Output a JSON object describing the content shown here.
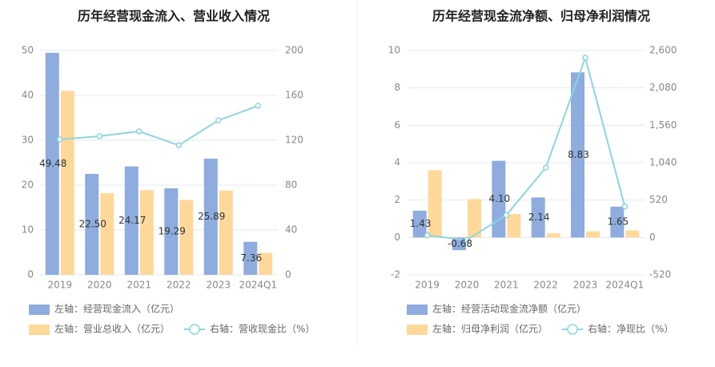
{
  "colors": {
    "bar1": "#8eacde",
    "bar2": "#ffd89a",
    "line": "#8dd5de",
    "grid": "#e3e8f2",
    "axis_text": "#888888",
    "label_text": "#333333",
    "title_text": "#222222"
  },
  "chart_data": [
    {
      "type": "bar",
      "title": "历年经营现金流入、营业收入情况",
      "categories": [
        "2019",
        "2020",
        "2021",
        "2022",
        "2023",
        "2024Q1"
      ],
      "left_axis": {
        "ticks": [
          "0",
          "10",
          "20",
          "30",
          "40",
          "50"
        ],
        "ylim": [
          0,
          50
        ]
      },
      "right_axis": {
        "ticks": [
          "0",
          "40",
          "80",
          "120",
          "160",
          "200"
        ],
        "ylim": [
          0,
          200
        ]
      },
      "series": [
        {
          "name": "左轴：经营现金流入（亿元）",
          "type": "bar",
          "axis": "left",
          "values": [
            49.48,
            22.5,
            24.17,
            19.29,
            25.89,
            7.36
          ],
          "labels": [
            "49.48",
            "22.50",
            "24.17",
            "19.29",
            "25.89",
            "7.36"
          ]
        },
        {
          "name": "左轴：营业总收入（亿元）",
          "type": "bar",
          "axis": "left",
          "values": [
            41.0,
            18.2,
            18.9,
            16.7,
            18.8,
            4.9
          ]
        },
        {
          "name": "右轴：营收现金比（%）",
          "type": "line",
          "axis": "right",
          "values": [
            120.7,
            123.6,
            127.9,
            115.5,
            137.7,
            150.7
          ]
        }
      ],
      "legend": "bottom-left",
      "grid": true
    },
    {
      "type": "bar",
      "title": "历年经营现金流净额、归母净利润情况",
      "categories": [
        "2019",
        "2020",
        "2021",
        "2022",
        "2023",
        "2024Q1"
      ],
      "left_axis": {
        "ticks": [
          "-2",
          "0",
          "2",
          "4",
          "6",
          "8",
          "10"
        ],
        "ylim": [
          -2,
          10
        ]
      },
      "right_axis": {
        "ticks": [
          "-520",
          "0",
          "520",
          "1,040",
          "1,560",
          "2,080",
          "2,600"
        ],
        "ylim": [
          -520,
          2600
        ]
      },
      "series": [
        {
          "name": "左轴：经营活动现金流净额（亿元）",
          "type": "bar",
          "axis": "left",
          "values": [
            1.43,
            -0.68,
            4.1,
            2.14,
            8.83,
            1.65
          ],
          "labels": [
            "1.43",
            "-0.68",
            "4.10",
            "2.14",
            "8.83",
            "1.65"
          ]
        },
        {
          "name": "左轴：归母净利润（亿元）",
          "type": "bar",
          "axis": "left",
          "values": [
            3.6,
            2.05,
            1.25,
            0.22,
            0.33,
            0.38
          ]
        },
        {
          "name": "右轴：净现比（%）",
          "type": "line",
          "axis": "right",
          "values": [
            30,
            -35,
            310,
            970,
            2500,
            430
          ]
        }
      ],
      "legend": "bottom-left",
      "grid": true
    }
  ]
}
